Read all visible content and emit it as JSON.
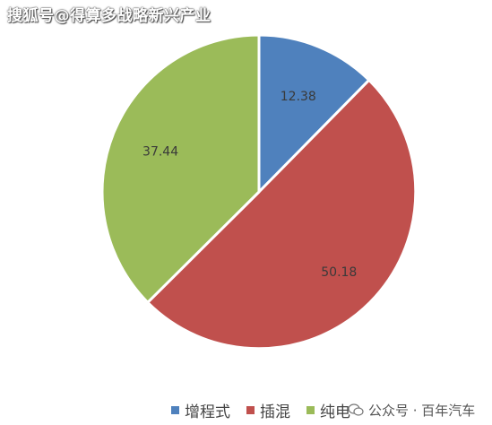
{
  "watermark": {
    "top_text": "搜狐号@得算多战略新兴产业",
    "bottom_text": "公众号 · 百年汽车"
  },
  "chart_data": {
    "type": "pie",
    "categories": [
      "增程式",
      "插混",
      "纯电"
    ],
    "values": [
      12.38,
      50.18,
      37.44
    ],
    "labels": [
      "12.38",
      "50.18",
      "37.44"
    ],
    "colors": [
      "#4f81bd",
      "#c0504d",
      "#9bbb59"
    ],
    "start_angle_deg": 0,
    "direction": "clockwise",
    "legend_position": "bottom"
  }
}
